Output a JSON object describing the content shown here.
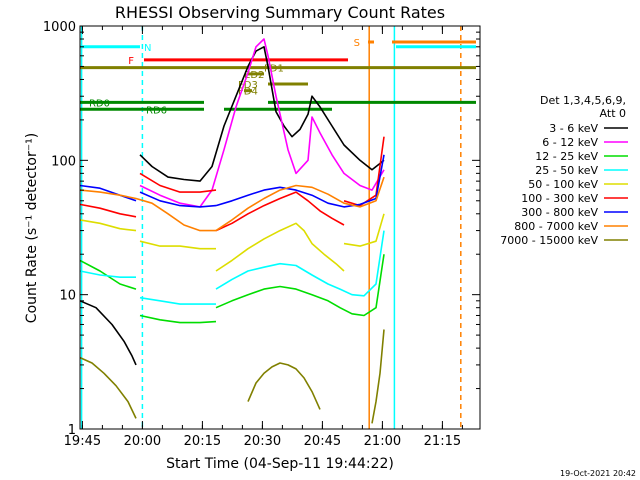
{
  "chart_data": {
    "type": "line",
    "title": "RHESSI Observing Summary Count Rates",
    "xlabel": "Start Time (04-Sep-11 19:44:22)",
    "ylabel": "Count Rate (s⁻¹ detector⁻¹)",
    "yscale": "log",
    "ylim": [
      1,
      1000
    ],
    "xlim": [
      0,
      100
    ],
    "x_unit": "minutes after 19:44:22",
    "x_ticks": [
      {
        "label": "19:45",
        "t": 0.6
      },
      {
        "label": "20:00",
        "t": 15.6
      },
      {
        "label": "20:15",
        "t": 30.6
      },
      {
        "label": "20:30",
        "t": 45.6
      },
      {
        "label": "20:45",
        "t": 60.6
      },
      {
        "label": "21:00",
        "t": 75.6
      },
      {
        "label": "21:15",
        "t": 90.6
      }
    ],
    "y_ticks": [
      {
        "label": "1000",
        "v": 1000
      },
      {
        "label": "100",
        "v": 100
      },
      {
        "label": "10",
        "v": 10
      },
      {
        "label": "1",
        "v": 1
      }
    ],
    "footer_date": "19-Oct-2021 20:42",
    "legend": {
      "placement": "right",
      "header": [
        "Det 1,3,4,5,6,9,",
        "Att 0"
      ],
      "entries": [
        {
          "name": "3 - 6 keV",
          "color": "#000000"
        },
        {
          "name": "6 - 12 keV",
          "color": "#ff00ff"
        },
        {
          "name": "12 - 25 keV",
          "color": "#00dd00"
        },
        {
          "name": "25 - 50 keV",
          "color": "#00ffff"
        },
        {
          "name": "50 - 100 keV",
          "color": "#dddd00"
        },
        {
          "name": "100 - 300 keV",
          "color": "#ff0000"
        },
        {
          "name": "300 - 800 keV",
          "color": "#0000ff"
        },
        {
          "name": "800 - 7000 keV",
          "color": "#ff8000"
        },
        {
          "name": "7000 - 15000 keV",
          "color": "#808000"
        }
      ]
    },
    "series": [
      {
        "name": "3 - 6 keV",
        "color": "#000000",
        "segments": [
          [
            [
              0,
              9
            ],
            [
              4,
              8
            ],
            [
              8,
              6
            ],
            [
              11,
              4.5
            ],
            [
              13,
              3.5
            ],
            [
              14,
              3
            ]
          ],
          [
            [
              15,
              110
            ],
            [
              18,
              90
            ],
            [
              22,
              75
            ],
            [
              26,
              72
            ],
            [
              30,
              70
            ],
            [
              33,
              90
            ],
            [
              36,
              180
            ],
            [
              39,
              300
            ],
            [
              42,
              500
            ],
            [
              44,
              650
            ],
            [
              46,
              700
            ],
            [
              47,
              500
            ],
            [
              49,
              230
            ],
            [
              51,
              180
            ],
            [
              53,
              150
            ],
            [
              55,
              170
            ],
            [
              57,
              220
            ],
            [
              58,
              300
            ],
            [
              60,
              250
            ],
            [
              63,
              180
            ],
            [
              66,
              130
            ],
            [
              70,
              100
            ],
            [
              73,
              85
            ],
            [
              76,
              100
            ]
          ]
        ]
      },
      {
        "name": "6 - 12 keV",
        "color": "#ff00ff",
        "segments": [
          [
            [
              15,
              65
            ],
            [
              20,
              55
            ],
            [
              25,
              48
            ],
            [
              30,
              45
            ],
            [
              33,
              60
            ],
            [
              36,
              120
            ],
            [
              39,
              250
            ],
            [
              42,
              450
            ],
            [
              44,
              700
            ],
            [
              46,
              800
            ],
            [
              47,
              600
            ],
            [
              49,
              300
            ],
            [
              52,
              120
            ],
            [
              54,
              80
            ],
            [
              57,
              100
            ],
            [
              58,
              210
            ],
            [
              60,
              160
            ],
            [
              63,
              110
            ],
            [
              66,
              80
            ],
            [
              70,
              65
            ],
            [
              73,
              60
            ],
            [
              76,
              85
            ]
          ]
        ]
      },
      {
        "name": "12 - 25 keV",
        "color": "#00dd00",
        "segments": [
          [
            [
              0,
              18
            ],
            [
              5,
              15
            ],
            [
              10,
              12
            ],
            [
              14,
              11
            ]
          ],
          [
            [
              15,
              7
            ],
            [
              20,
              6.5
            ],
            [
              25,
              6.2
            ],
            [
              30,
              6.2
            ],
            [
              34,
              6.3
            ]
          ],
          [
            [
              34,
              8
            ],
            [
              38,
              9
            ],
            [
              42,
              10
            ],
            [
              46,
              11
            ],
            [
              50,
              11.5
            ],
            [
              54,
              11
            ],
            [
              58,
              10
            ],
            [
              62,
              9
            ],
            [
              65,
              8
            ],
            [
              68,
              7.2
            ],
            [
              71,
              7
            ],
            [
              74,
              8
            ],
            [
              76,
              20
            ]
          ]
        ]
      },
      {
        "name": "25 - 50 keV",
        "color": "#00ffff",
        "segments": [
          [
            [
              0,
              15
            ],
            [
              5,
              14
            ],
            [
              10,
              13.5
            ],
            [
              14,
              13.5
            ]
          ],
          [
            [
              15,
              9.5
            ],
            [
              20,
              9
            ],
            [
              25,
              8.5
            ],
            [
              30,
              8.5
            ],
            [
              34,
              8.5
            ]
          ],
          [
            [
              34,
              11
            ],
            [
              38,
              13
            ],
            [
              42,
              15
            ],
            [
              46,
              16
            ],
            [
              50,
              17
            ],
            [
              54,
              16.5
            ],
            [
              58,
              14
            ],
            [
              62,
              12
            ],
            [
              65,
              11
            ],
            [
              68,
              10
            ],
            [
              71,
              9.8
            ],
            [
              74,
              12
            ],
            [
              76,
              30
            ]
          ]
        ]
      },
      {
        "name": "50 - 100 keV",
        "color": "#dddd00",
        "segments": [
          [
            [
              0,
              36
            ],
            [
              5,
              34
            ],
            [
              10,
              31
            ],
            [
              14,
              30
            ]
          ],
          [
            [
              15,
              25
            ],
            [
              20,
              23
            ],
            [
              25,
              23
            ],
            [
              30,
              22
            ],
            [
              34,
              22
            ]
          ],
          [
            [
              34,
              15
            ],
            [
              38,
              18
            ],
            [
              42,
              22
            ],
            [
              46,
              26
            ],
            [
              50,
              30
            ],
            [
              54,
              34
            ],
            [
              56,
              30
            ],
            [
              58,
              24
            ],
            [
              61,
              20
            ],
            [
              64,
              17
            ],
            [
              66,
              15
            ]
          ],
          [
            [
              66,
              24
            ],
            [
              70,
              23
            ],
            [
              74,
              25
            ],
            [
              76,
              40
            ]
          ]
        ]
      },
      {
        "name": "100 - 300 keV",
        "color": "#ff0000",
        "segments": [
          [
            [
              0,
              47
            ],
            [
              5,
              44
            ],
            [
              10,
              40
            ],
            [
              14,
              38
            ]
          ],
          [
            [
              15,
              80
            ],
            [
              20,
              65
            ],
            [
              25,
              58
            ],
            [
              30,
              58
            ],
            [
              34,
              60
            ]
          ],
          [
            [
              34,
              30
            ],
            [
              38,
              34
            ],
            [
              42,
              40
            ],
            [
              46,
              46
            ],
            [
              50,
              52
            ],
            [
              54,
              58
            ],
            [
              57,
              50
            ],
            [
              60,
              42
            ],
            [
              63,
              37
            ],
            [
              66,
              33
            ]
          ],
          [
            [
              66,
              50
            ],
            [
              70,
              46
            ],
            [
              74,
              55
            ],
            [
              76,
              150
            ]
          ]
        ]
      },
      {
        "name": "300 - 800 keV",
        "color": "#0000ff",
        "segments": [
          [
            [
              0,
              65
            ],
            [
              5,
              62
            ],
            [
              10,
              55
            ],
            [
              14,
              50
            ]
          ],
          [
            [
              15,
              58
            ],
            [
              20,
              50
            ],
            [
              25,
              46
            ],
            [
              30,
              45
            ],
            [
              34,
              46
            ]
          ],
          [
            [
              34,
              46
            ],
            [
              38,
              50
            ],
            [
              42,
              55
            ],
            [
              46,
              60
            ],
            [
              50,
              63
            ],
            [
              54,
              60
            ],
            [
              58,
              55
            ],
            [
              62,
              48
            ],
            [
              66,
              45
            ],
            [
              70,
              47
            ],
            [
              74,
              52
            ],
            [
              76,
              110
            ]
          ]
        ]
      },
      {
        "name": "800 - 7000 keV",
        "color": "#ff8000",
        "segments": [
          [
            [
              0,
              60
            ],
            [
              5,
              58
            ],
            [
              10,
              55
            ],
            [
              14,
              52
            ],
            [
              18,
              48
            ],
            [
              22,
              40
            ],
            [
              26,
              33
            ],
            [
              30,
              30
            ],
            [
              34,
              30
            ],
            [
              38,
              36
            ],
            [
              42,
              44
            ],
            [
              46,
              52
            ],
            [
              50,
              60
            ],
            [
              54,
              65
            ],
            [
              58,
              63
            ],
            [
              62,
              56
            ],
            [
              66,
              48
            ],
            [
              70,
              45
            ],
            [
              74,
              50
            ],
            [
              76,
              75
            ]
          ]
        ]
      },
      {
        "name": "7000 - 15000 keV",
        "color": "#808000",
        "segments": [
          [
            [
              0,
              3.4
            ],
            [
              3,
              3.1
            ],
            [
              6,
              2.6
            ],
            [
              9,
              2.1
            ],
            [
              12,
              1.6
            ],
            [
              14,
              1.2
            ]
          ],
          [
            [
              42,
              1.6
            ],
            [
              44,
              2.2
            ],
            [
              46,
              2.6
            ],
            [
              48,
              2.9
            ],
            [
              50,
              3.1
            ],
            [
              52,
              3.0
            ],
            [
              54,
              2.8
            ],
            [
              56,
              2.4
            ],
            [
              58,
              1.9
            ],
            [
              60,
              1.4
            ]
          ],
          [
            [
              73,
              1.1
            ],
            [
              74,
              1.6
            ],
            [
              75,
              2.6
            ],
            [
              76,
              5.5
            ]
          ]
        ]
      }
    ],
    "flag_bars": [
      {
        "name": "N",
        "color": "#00ffff",
        "segments": [
          [
            0,
            15
          ],
          [
            79,
            99
          ]
        ],
        "v": 700,
        "label_t": 16
      },
      {
        "name": "F",
        "color": "#ff0000",
        "segments": [
          [
            16,
            67
          ]
        ],
        "v": 560,
        "label_t": 13.5
      },
      {
        "name": "S",
        "color": "#ff8000",
        "segments": [
          [
            72,
            73.5
          ],
          [
            78,
            99
          ]
        ],
        "v": 760,
        "label_t": 70
      },
      {
        "name": "FD1",
        "color": "#808000",
        "segments": [
          [
            0,
            99
          ]
        ],
        "v": 490,
        "label_t": 46
      },
      {
        "name": "ED2",
        "color": "#808000",
        "segments": [
          [
            42,
            46
          ]
        ],
        "v": 440,
        "label_t": 41
      },
      {
        "name": "FD3",
        "color": "#808000",
        "segments": [
          [
            47,
            57
          ]
        ],
        "v": 370,
        "label_t": 39.5
      },
      {
        "name": "FD4",
        "color": "#808000",
        "segments": [
          [
            41,
            43
          ]
        ],
        "v": 330,
        "label_t": 39.5
      },
      {
        "name": "RD0",
        "color": "#008800",
        "segments": [
          [
            0,
            17
          ],
          [
            17,
            31
          ],
          [
            47,
            99
          ]
        ],
        "v": 270,
        "label_t": 7.5
      },
      {
        "name": "RD6",
        "color": "#008800",
        "segments": [
          [
            0,
            31
          ],
          [
            36,
            63
          ]
        ],
        "v": 240,
        "label_t": 16.5
      }
    ],
    "vertical_markers": [
      {
        "t": 0.4,
        "color": "#00ffff",
        "style": "solid"
      },
      {
        "t": 15.6,
        "color": "#00ffff",
        "style": "dashed"
      },
      {
        "t": 72.3,
        "color": "#ff8000",
        "style": "solid"
      },
      {
        "t": 78.6,
        "color": "#00ffff",
        "style": "solid"
      },
      {
        "t": 95.2,
        "color": "#ff8000",
        "style": "dashed"
      }
    ]
  }
}
